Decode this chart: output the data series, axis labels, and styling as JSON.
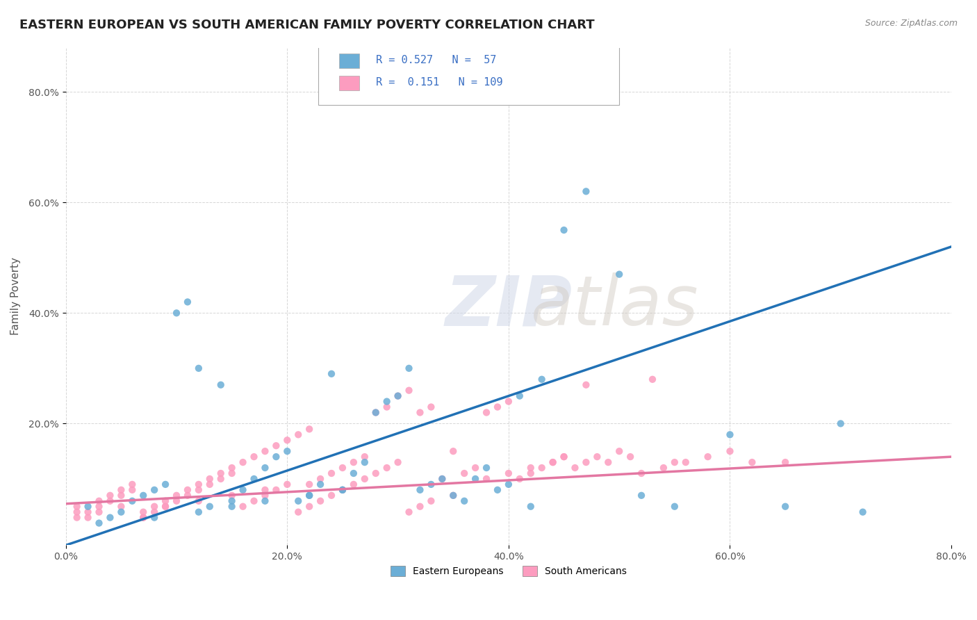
{
  "title": "EASTERN EUROPEAN VS SOUTH AMERICAN FAMILY POVERTY CORRELATION CHART",
  "source": "Source: ZipAtlas.com",
  "xlabel": "",
  "ylabel": "Family Poverty",
  "xlim": [
    0.0,
    0.8
  ],
  "ylim": [
    -0.02,
    0.88
  ],
  "xtick_labels": [
    "0.0%",
    "20.0%",
    "40.0%",
    "60.0%",
    "80.0%"
  ],
  "xtick_vals": [
    0.0,
    0.2,
    0.4,
    0.6,
    0.8
  ],
  "ytick_labels": [
    "20.0%",
    "40.0%",
    "60.0%",
    "80.0%"
  ],
  "ytick_vals": [
    0.2,
    0.4,
    0.6,
    0.8
  ],
  "legend_entries": [
    "Eastern Europeans",
    "South Americans"
  ],
  "legend_R": [
    0.527,
    0.151
  ],
  "legend_N": [
    57,
    109
  ],
  "blue_color": "#6baed6",
  "pink_color": "#fc9cbf",
  "blue_line_color": "#2171b5",
  "pink_line_color": "#e377a2",
  "watermark": "ZIPatlas",
  "title_fontsize": 13,
  "axis_label_fontsize": 11,
  "tick_fontsize": 10,
  "background_color": "#ffffff",
  "grid_color": "#cccccc",
  "blue_scatter_x": [
    0.02,
    0.04,
    0.05,
    0.06,
    0.07,
    0.08,
    0.09,
    0.1,
    0.11,
    0.12,
    0.13,
    0.14,
    0.15,
    0.16,
    0.17,
    0.18,
    0.19,
    0.2,
    0.21,
    0.22,
    0.23,
    0.24,
    0.25,
    0.26,
    0.27,
    0.28,
    0.29,
    0.3,
    0.31,
    0.32,
    0.33,
    0.34,
    0.35,
    0.36,
    0.37,
    0.38,
    0.39,
    0.4,
    0.41,
    0.42,
    0.43,
    0.45,
    0.47,
    0.5,
    0.52,
    0.55,
    0.6,
    0.65,
    0.7,
    0.72,
    0.03,
    0.08,
    0.12,
    0.15,
    0.18,
    0.22,
    0.25
  ],
  "blue_scatter_y": [
    0.05,
    0.03,
    0.04,
    0.06,
    0.07,
    0.08,
    0.09,
    0.4,
    0.42,
    0.3,
    0.05,
    0.27,
    0.06,
    0.08,
    0.1,
    0.12,
    0.14,
    0.15,
    0.06,
    0.07,
    0.09,
    0.29,
    0.08,
    0.11,
    0.13,
    0.22,
    0.24,
    0.25,
    0.3,
    0.08,
    0.09,
    0.1,
    0.07,
    0.06,
    0.1,
    0.12,
    0.08,
    0.09,
    0.25,
    0.05,
    0.28,
    0.55,
    0.62,
    0.47,
    0.07,
    0.05,
    0.18,
    0.05,
    0.2,
    0.04,
    0.02,
    0.03,
    0.04,
    0.05,
    0.06,
    0.07,
    0.08
  ],
  "pink_scatter_x": [
    0.01,
    0.02,
    0.03,
    0.04,
    0.05,
    0.06,
    0.07,
    0.08,
    0.09,
    0.1,
    0.11,
    0.12,
    0.13,
    0.14,
    0.15,
    0.16,
    0.17,
    0.18,
    0.19,
    0.2,
    0.21,
    0.22,
    0.23,
    0.24,
    0.25,
    0.26,
    0.27,
    0.28,
    0.29,
    0.3,
    0.31,
    0.32,
    0.33,
    0.34,
    0.35,
    0.36,
    0.37,
    0.38,
    0.39,
    0.4,
    0.41,
    0.42,
    0.43,
    0.44,
    0.45,
    0.47,
    0.49,
    0.51,
    0.53,
    0.55,
    0.01,
    0.02,
    0.03,
    0.04,
    0.05,
    0.06,
    0.07,
    0.08,
    0.09,
    0.1,
    0.11,
    0.12,
    0.13,
    0.14,
    0.15,
    0.16,
    0.17,
    0.18,
    0.19,
    0.2,
    0.21,
    0.22,
    0.23,
    0.24,
    0.25,
    0.26,
    0.27,
    0.28,
    0.29,
    0.3,
    0.31,
    0.32,
    0.33,
    0.35,
    0.38,
    0.4,
    0.42,
    0.44,
    0.45,
    0.46,
    0.47,
    0.48,
    0.5,
    0.52,
    0.54,
    0.56,
    0.58,
    0.6,
    0.62,
    0.65,
    0.01,
    0.03,
    0.05,
    0.07,
    0.09,
    0.12,
    0.15,
    0.18,
    0.22
  ],
  "pink_scatter_y": [
    0.05,
    0.04,
    0.06,
    0.07,
    0.08,
    0.09,
    0.03,
    0.05,
    0.06,
    0.07,
    0.08,
    0.09,
    0.1,
    0.11,
    0.12,
    0.13,
    0.14,
    0.15,
    0.16,
    0.17,
    0.18,
    0.19,
    0.1,
    0.11,
    0.12,
    0.13,
    0.14,
    0.22,
    0.23,
    0.25,
    0.26,
    0.22,
    0.23,
    0.1,
    0.15,
    0.11,
    0.12,
    0.22,
    0.23,
    0.24,
    0.1,
    0.11,
    0.12,
    0.13,
    0.14,
    0.27,
    0.13,
    0.14,
    0.28,
    0.13,
    0.04,
    0.03,
    0.05,
    0.06,
    0.07,
    0.08,
    0.03,
    0.04,
    0.05,
    0.06,
    0.07,
    0.08,
    0.09,
    0.1,
    0.11,
    0.05,
    0.06,
    0.07,
    0.08,
    0.09,
    0.04,
    0.05,
    0.06,
    0.07,
    0.08,
    0.09,
    0.1,
    0.11,
    0.12,
    0.13,
    0.04,
    0.05,
    0.06,
    0.07,
    0.1,
    0.11,
    0.12,
    0.13,
    0.14,
    0.12,
    0.13,
    0.14,
    0.15,
    0.11,
    0.12,
    0.13,
    0.14,
    0.15,
    0.13,
    0.13,
    0.03,
    0.04,
    0.05,
    0.04,
    0.05,
    0.06,
    0.07,
    0.08,
    0.09
  ]
}
